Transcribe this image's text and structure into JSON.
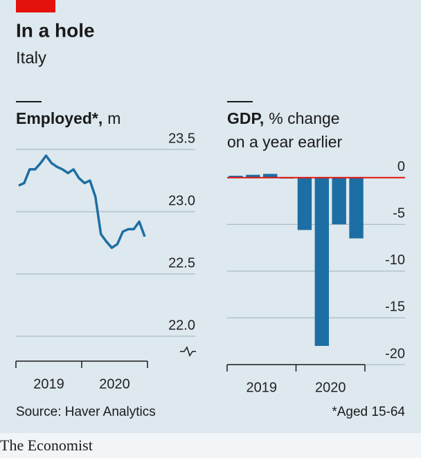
{
  "header": {
    "title": "In a hole",
    "subtitle": "Italy"
  },
  "chart_data": [
    {
      "type": "line",
      "title": "Employed*,",
      "unit": "m",
      "categories": [
        null,
        null,
        null,
        null,
        null,
        null,
        null,
        null,
        null,
        null,
        null,
        null,
        null,
        null,
        null,
        null,
        null,
        null,
        null,
        null,
        null,
        null,
        null,
        null
      ],
      "xtick_labels": [
        "2019",
        "2020"
      ],
      "values": [
        23.21,
        23.23,
        23.34,
        23.34,
        23.39,
        23.45,
        23.39,
        23.36,
        23.34,
        23.31,
        23.34,
        23.27,
        23.23,
        23.25,
        23.12,
        22.82,
        22.76,
        22.71,
        22.74,
        22.84,
        22.86,
        22.86,
        22.92,
        22.8
      ],
      "color": "#1d6ea3",
      "ylim": [
        21.8,
        23.6
      ],
      "yticks": [
        23.5,
        {
          "value": 23,
          "label": "23.0"
        },
        22.5,
        {
          "value": 22,
          "label": "22.0"
        }
      ],
      "grid": true
    },
    {
      "type": "bar",
      "title": "GDP,",
      "subtitle": [
        "% change",
        "on a year earlier"
      ],
      "categories": [
        null,
        null,
        null,
        null,
        null,
        null,
        null,
        null
      ],
      "xtick_labels": [
        "2019",
        "2020"
      ],
      "values": [
        0.2,
        0.3,
        0.4,
        -0.1,
        -5.6,
        -18.0,
        -5.0,
        -6.5
      ],
      "color": "#1d6ea3",
      "zero_line_color": "#e3120b",
      "ylim": [
        -20,
        2.2
      ],
      "yticks": [
        0,
        -5,
        -10,
        -15,
        -20
      ],
      "grid": true
    }
  ],
  "footer": {
    "source": "Source: Haver Analytics",
    "note": "*Aged 15-64",
    "brand": "The Economist"
  }
}
